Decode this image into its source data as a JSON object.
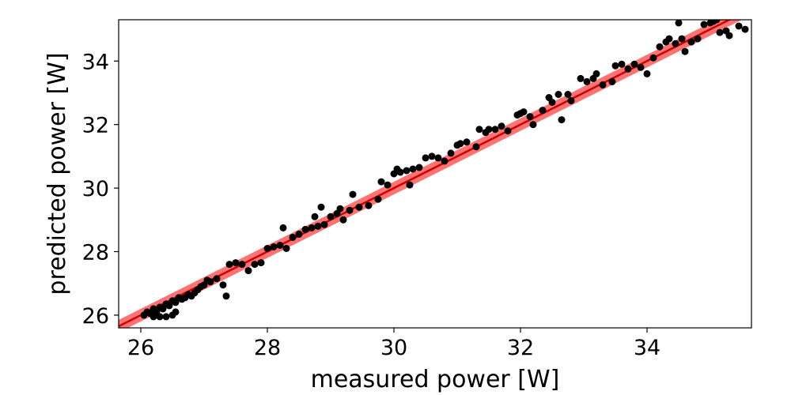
{
  "chart_data": {
    "type": "scatter",
    "title": "",
    "xlabel": "measured power [W]",
    "ylabel": "predicted power [W]",
    "xlim": [
      25.65,
      35.65
    ],
    "ylim": [
      25.6,
      35.3
    ],
    "xticks": [
      26,
      28,
      30,
      32,
      34
    ],
    "yticks": [
      26,
      28,
      30,
      32,
      34
    ],
    "xtick_labels": [
      "26",
      "28",
      "30",
      "32",
      "34"
    ],
    "ytick_labels": [
      "26",
      "28",
      "30",
      "32",
      "34"
    ],
    "grid": false,
    "legend": "none",
    "point_color": "#000000",
    "band_color": "#ff0000",
    "reference_line": {
      "type": "identity",
      "color": "#cc0000",
      "band_half_width": 0.2
    },
    "points": [
      [
        26.05,
        26.0
      ],
      [
        26.1,
        26.1
      ],
      [
        26.15,
        26.05
      ],
      [
        26.2,
        26.2
      ],
      [
        26.25,
        26.1
      ],
      [
        26.3,
        26.25
      ],
      [
        26.35,
        26.2
      ],
      [
        26.4,
        26.35
      ],
      [
        26.45,
        26.3
      ],
      [
        26.5,
        26.45
      ],
      [
        26.55,
        26.4
      ],
      [
        26.6,
        26.55
      ],
      [
        26.65,
        26.5
      ],
      [
        26.2,
        25.95
      ],
      [
        26.3,
        25.95
      ],
      [
        26.4,
        25.95
      ],
      [
        26.5,
        26.0
      ],
      [
        26.55,
        26.1
      ],
      [
        26.7,
        26.55
      ],
      [
        26.75,
        26.65
      ],
      [
        26.8,
        26.6
      ],
      [
        26.85,
        26.7
      ],
      [
        26.9,
        26.8
      ],
      [
        26.95,
        26.9
      ],
      [
        27.0,
        26.95
      ],
      [
        27.05,
        27.1
      ],
      [
        27.1,
        27.05
      ],
      [
        27.2,
        27.15
      ],
      [
        27.3,
        26.95
      ],
      [
        27.35,
        26.6
      ],
      [
        27.4,
        27.6
      ],
      [
        27.5,
        27.65
      ],
      [
        27.6,
        27.6
      ],
      [
        27.7,
        27.4
      ],
      [
        27.8,
        27.6
      ],
      [
        27.9,
        27.65
      ],
      [
        28.0,
        28.1
      ],
      [
        28.1,
        28.15
      ],
      [
        28.2,
        28.2
      ],
      [
        28.25,
        28.75
      ],
      [
        28.3,
        28.1
      ],
      [
        28.4,
        28.45
      ],
      [
        28.5,
        28.55
      ],
      [
        28.6,
        28.7
      ],
      [
        28.7,
        28.75
      ],
      [
        28.75,
        29.1
      ],
      [
        28.8,
        28.8
      ],
      [
        28.85,
        29.4
      ],
      [
        28.9,
        28.85
      ],
      [
        29.0,
        29.1
      ],
      [
        29.1,
        29.2
      ],
      [
        29.15,
        29.35
      ],
      [
        29.2,
        29.0
      ],
      [
        29.3,
        29.3
      ],
      [
        29.35,
        29.8
      ],
      [
        29.45,
        29.4
      ],
      [
        29.6,
        29.45
      ],
      [
        29.75,
        29.65
      ],
      [
        29.8,
        30.2
      ],
      [
        29.9,
        30.1
      ],
      [
        30.0,
        30.45
      ],
      [
        30.05,
        30.6
      ],
      [
        30.1,
        30.5
      ],
      [
        30.2,
        30.55
      ],
      [
        30.25,
        30.1
      ],
      [
        30.3,
        30.6
      ],
      [
        30.4,
        30.65
      ],
      [
        30.5,
        30.95
      ],
      [
        30.6,
        31.0
      ],
      [
        30.7,
        30.95
      ],
      [
        30.8,
        30.85
      ],
      [
        30.9,
        31.1
      ],
      [
        31.0,
        31.35
      ],
      [
        31.05,
        31.4
      ],
      [
        31.15,
        31.45
      ],
      [
        31.3,
        31.3
      ],
      [
        31.35,
        31.85
      ],
      [
        31.45,
        31.75
      ],
      [
        31.5,
        31.85
      ],
      [
        31.6,
        31.85
      ],
      [
        31.7,
        31.95
      ],
      [
        31.8,
        31.8
      ],
      [
        31.95,
        32.3
      ],
      [
        32.0,
        32.35
      ],
      [
        32.05,
        32.4
      ],
      [
        32.15,
        32.25
      ],
      [
        32.2,
        32.0
      ],
      [
        32.35,
        32.45
      ],
      [
        32.45,
        32.85
      ],
      [
        32.5,
        32.7
      ],
      [
        32.6,
        32.95
      ],
      [
        32.65,
        32.15
      ],
      [
        32.75,
        32.95
      ],
      [
        32.8,
        32.75
      ],
      [
        32.95,
        33.45
      ],
      [
        33.05,
        33.35
      ],
      [
        33.15,
        33.45
      ],
      [
        33.2,
        33.6
      ],
      [
        33.3,
        33.25
      ],
      [
        33.45,
        33.35
      ],
      [
        33.5,
        33.85
      ],
      [
        33.6,
        33.9
      ],
      [
        33.7,
        33.75
      ],
      [
        33.8,
        33.9
      ],
      [
        33.9,
        33.8
      ],
      [
        34.0,
        33.6
      ],
      [
        34.1,
        34.1
      ],
      [
        34.2,
        34.45
      ],
      [
        34.3,
        34.6
      ],
      [
        34.35,
        34.7
      ],
      [
        34.45,
        34.55
      ],
      [
        34.55,
        34.7
      ],
      [
        34.6,
        34.3
      ],
      [
        34.7,
        34.6
      ],
      [
        34.8,
        34.7
      ],
      [
        34.9,
        35.15
      ],
      [
        35.0,
        35.2
      ],
      [
        35.05,
        35.25
      ],
      [
        35.15,
        34.9
      ],
      [
        35.25,
        34.95
      ],
      [
        35.3,
        34.8
      ],
      [
        35.45,
        35.1
      ],
      [
        35.55,
        35.0
      ],
      [
        34.5,
        35.2
      ],
      [
        35.1,
        35.3
      ]
    ]
  }
}
